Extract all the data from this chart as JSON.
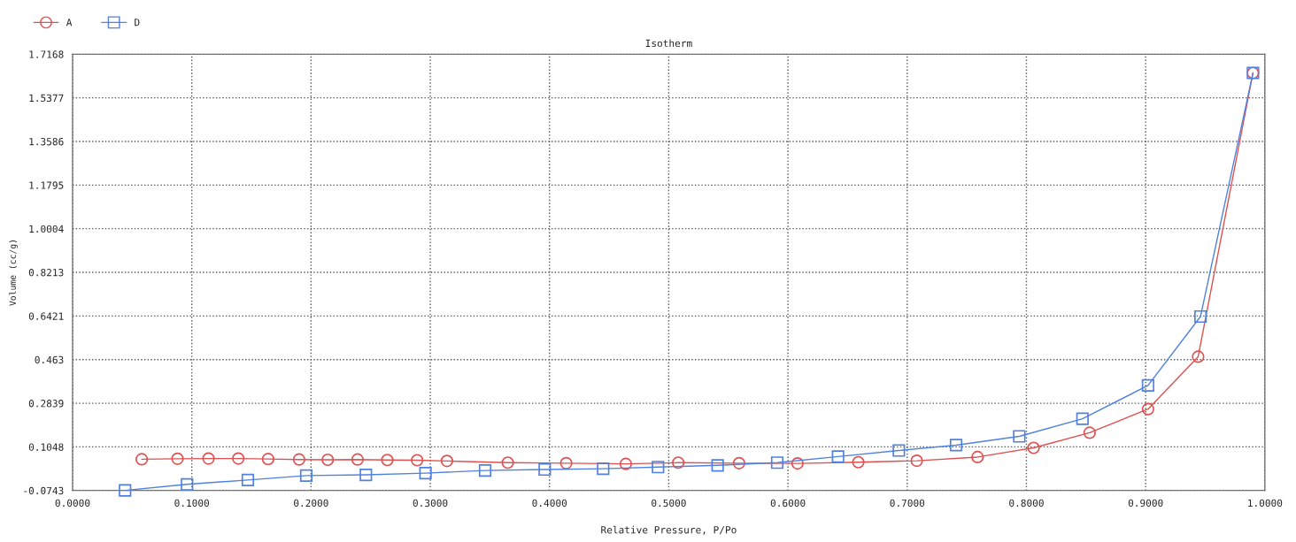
{
  "chart_data": {
    "type": "line",
    "title": "Isotherm",
    "xlabel": "Relative Pressure, P/Po",
    "ylabel": "Volume (cc/g)",
    "series": [
      {
        "name": "A",
        "color": "#e05050",
        "marker": "circle",
        "x": [
          0.058,
          0.088,
          0.114,
          0.139,
          0.164,
          0.19,
          0.214,
          0.239,
          0.264,
          0.289,
          0.314,
          0.365,
          0.414,
          0.464,
          0.508,
          0.559,
          0.608,
          0.659,
          0.708,
          0.759,
          0.806,
          0.853,
          0.902,
          0.944,
          0.99
        ],
        "values": [
          0.054,
          0.056,
          0.057,
          0.057,
          0.055,
          0.053,
          0.052,
          0.053,
          0.051,
          0.05,
          0.047,
          0.04,
          0.038,
          0.035,
          0.04,
          0.038,
          0.037,
          0.042,
          0.048,
          0.063,
          0.101,
          0.163,
          0.26,
          0.475,
          1.64
        ]
      },
      {
        "name": "D",
        "color": "#5080e0",
        "marker": "square",
        "x": [
          0.044,
          0.096,
          0.147,
          0.196,
          0.246,
          0.296,
          0.346,
          0.396,
          0.445,
          0.491,
          0.541,
          0.591,
          0.642,
          0.693,
          0.741,
          0.794,
          0.847,
          0.902,
          0.946,
          0.99
        ],
        "values": [
          -0.074,
          -0.049,
          -0.031,
          -0.013,
          -0.01,
          -0.003,
          0.008,
          0.012,
          0.015,
          0.022,
          0.029,
          0.04,
          0.065,
          0.09,
          0.112,
          0.148,
          0.22,
          0.357,
          0.64,
          1.64
        ]
      }
    ],
    "xlim": [
      0,
      1
    ],
    "xticks": [
      {
        "value": 0,
        "label": "0.0000"
      },
      {
        "value": 0.1,
        "label": "0.1000"
      },
      {
        "value": 0.2,
        "label": "0.2000"
      },
      {
        "value": 0.3,
        "label": "0.3000"
      },
      {
        "value": 0.4,
        "label": "0.4000"
      },
      {
        "value": 0.5,
        "label": "0.5000"
      },
      {
        "value": 0.6,
        "label": "0.6000"
      },
      {
        "value": 0.7,
        "label": "0.7000"
      },
      {
        "value": 0.8,
        "label": "0.8000"
      },
      {
        "value": 0.9,
        "label": "0.9000"
      },
      {
        "value": 1,
        "label": "1.0000"
      }
    ],
    "ylim": [
      -0.0743,
      1.7168
    ],
    "yticks": [
      -0.0743,
      0.1048,
      0.2839,
      0.463,
      0.6421,
      0.8213,
      1.0004,
      1.1795,
      1.3586,
      1.5377,
      1.7168
    ],
    "grid": true,
    "legend": "top left",
    "line_style": "solid"
  }
}
